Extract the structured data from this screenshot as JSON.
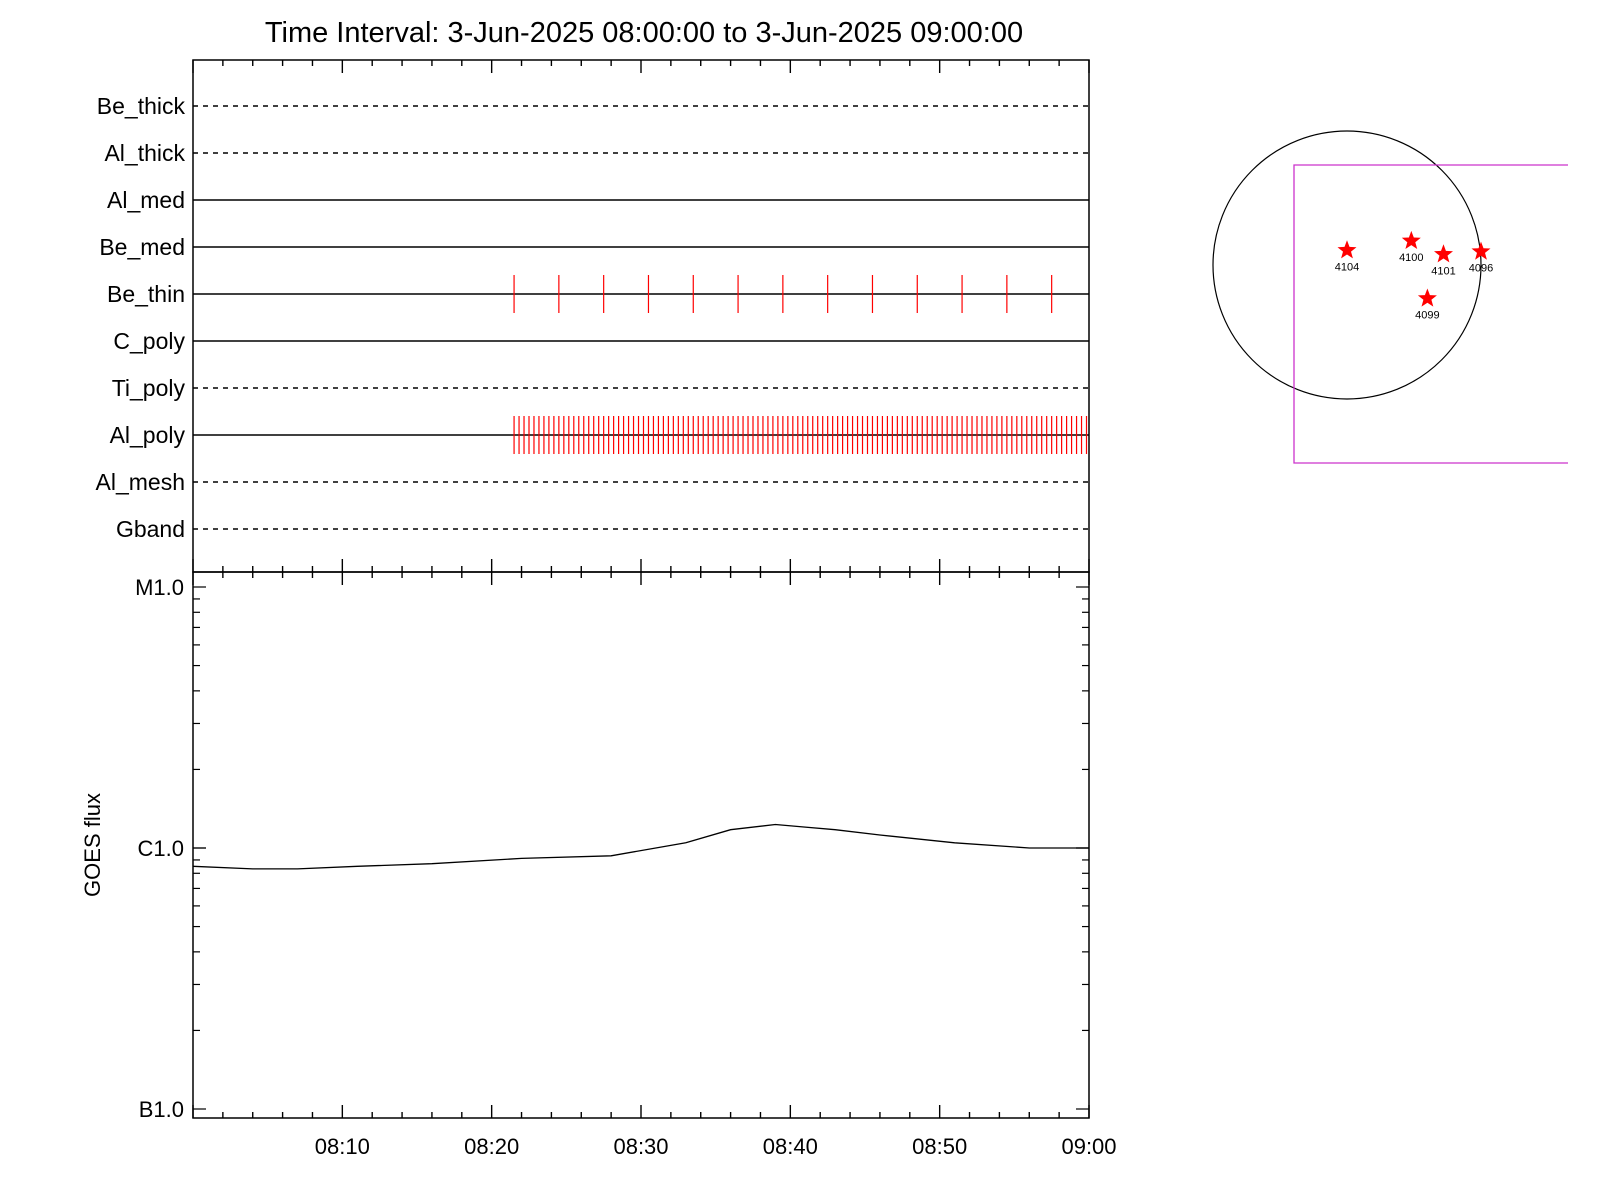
{
  "chart_data": [
    {
      "type": "timeline",
      "title": "Time Interval:  3-Jun-2025 08:00:00 to  3-Jun-2025 09:00:00",
      "x_range": [
        "08:00",
        "09:00"
      ],
      "rows": [
        {
          "name": "Be_thick",
          "style": "dashed",
          "events": []
        },
        {
          "name": "Al_thick",
          "style": "dashed",
          "events": []
        },
        {
          "name": "Al_med",
          "style": "solid",
          "events": []
        },
        {
          "name": "Be_med",
          "style": "solid",
          "events": []
        },
        {
          "name": "Be_thin",
          "style": "solid",
          "event_period_min": 3.0,
          "events": [
            "08:21:30",
            "08:24:30",
            "08:27:30",
            "08:30:30",
            "08:33:30",
            "08:36:30",
            "08:39:30",
            "08:42:30",
            "08:45:30",
            "08:48:30",
            "08:51:30",
            "08:54:30",
            "08:57:30"
          ]
        },
        {
          "name": "C_poly",
          "style": "solid",
          "events": []
        },
        {
          "name": "Ti_poly",
          "style": "dashed",
          "events": []
        },
        {
          "name": "Al_poly",
          "style": "solid",
          "event_start": "08:21:30",
          "event_end": "09:00:00",
          "event_period_sec": 20,
          "events": []
        },
        {
          "name": "Al_mesh",
          "style": "dashed",
          "events": []
        },
        {
          "name": "Gband",
          "style": "dashed",
          "events": []
        }
      ],
      "event_color": "#ff0000"
    },
    {
      "type": "line",
      "ylabel": "GOES flux",
      "y_scale": "log",
      "yticks": [
        "M1.0",
        "C1.0",
        "B1.0"
      ],
      "ylim": [
        "B1.0",
        "M1.0"
      ],
      "xticks": [
        "08:10",
        "08:20",
        "08:30",
        "08:40",
        "08:50",
        "09:00"
      ],
      "x_range": [
        "08:00",
        "09:00"
      ],
      "series": [
        {
          "x_minutes": [
            0,
            4,
            7,
            11,
            16,
            22,
            28,
            33,
            36,
            39,
            41,
            43,
            46,
            51,
            56,
            60
          ],
          "y_logflux": [
            -6.07,
            -6.08,
            -6.08,
            -6.07,
            -6.06,
            -6.04,
            -6.03,
            -5.98,
            -5.93,
            -5.91,
            -5.92,
            -5.93,
            -5.95,
            -5.98,
            -6.0,
            -6.0
          ]
        }
      ]
    },
    {
      "type": "scatter",
      "markers": [
        {
          "label": "4104",
          "x": -0.0,
          "y": 0.11
        },
        {
          "label": "4100",
          "x": 0.48,
          "y": 0.18
        },
        {
          "label": "4101",
          "x": 0.72,
          "y": 0.08
        },
        {
          "label": "4096",
          "x": 1.0,
          "y": 0.1
        },
        {
          "label": "4099",
          "x": 0.6,
          "y": -0.25
        }
      ],
      "colors": {
        "markers": "#ff0000",
        "fov_box": "#cc33cc",
        "disk": "#000000"
      }
    }
  ]
}
